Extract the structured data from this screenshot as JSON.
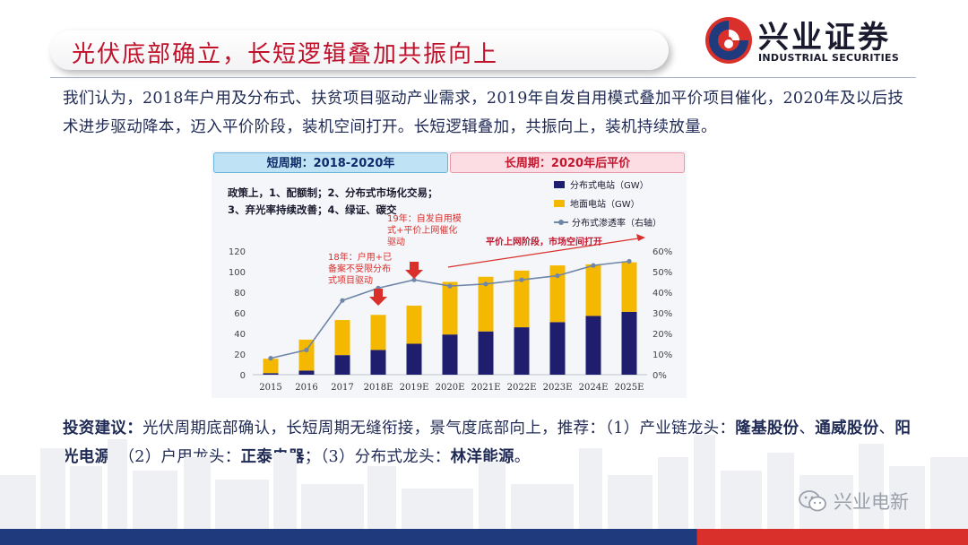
{
  "header": {
    "title": "光伏底部确立，长短逻辑叠加共振向上",
    "logo_cn": "兴业证券",
    "logo_en": "INDUSTRIAL SECURITIES"
  },
  "summary": "我们认为，2018年户用及分布式、扶贫项目驱动产业需求，2019年自发自用模式叠加平价项目催化，2020年及以后技术进步驱动降本，迈入平价阶段，装机空间打开。长短逻辑叠加，共振向上，装机持续放量。",
  "chart_data": {
    "type": "bar",
    "stacked": true,
    "categories": [
      "2015",
      "2016",
      "2017",
      "2018E",
      "2019E",
      "2020E",
      "2021E",
      "2022E",
      "2023E",
      "2024E",
      "2025E"
    ],
    "series": [
      {
        "name": "分布式电站（GW）",
        "kind": "bar",
        "values": [
          1.5,
          4,
          19,
          24,
          30,
          39,
          42,
          46,
          51,
          57,
          61
        ],
        "color": "#1f1d6e"
      },
      {
        "name": "地面电站（GW）",
        "kind": "bar",
        "values": [
          14,
          30,
          34,
          34,
          37,
          51,
          53,
          55,
          55,
          50,
          48
        ],
        "color": "#f5b800"
      },
      {
        "name": "分布式渗透率（右轴）",
        "kind": "line",
        "axis": "right",
        "values": [
          0.08,
          0.12,
          0.36,
          0.42,
          0.46,
          0.43,
          0.44,
          0.46,
          0.48,
          0.53,
          0.55
        ],
        "color": "#6f86a8"
      }
    ],
    "yticks_left": [
      "0",
      "20",
      "40",
      "60",
      "80",
      "100",
      "120"
    ],
    "ylim_left": [
      0,
      120
    ],
    "yticks_right": [
      "0%",
      "10%",
      "20%",
      "30%",
      "40%",
      "50%",
      "60%"
    ],
    "ylim_right": [
      0,
      0.6
    ],
    "period_short": "短周期：2018-2020年",
    "period_long": "长周期：2020年后平价",
    "policy_note": "政策上，1、配额制；2、分布式市场化交易；3、弃光率持续改善；4、绿证、碳交",
    "annotation_2019": "19年：自发自用模式+平价上网催化驱动",
    "annotation_2018": "18年：户用+已备案不受限分布式项目驱动",
    "annotation_grid": "平价上网阶段，市场空间打开",
    "colors": {
      "arrow": "#d9302c"
    }
  },
  "advice": {
    "prefix": "投资建议：",
    "text1": "光伏周期底部确认，长短周期无缝衔接，景气度底部向上，推荐：（1）产业链龙头：",
    "stock1": "隆基股份",
    "sep1": "、",
    "stock2": "通威股份",
    "sep2": "、",
    "stock3": "阳光电源",
    "text2": "；（2）户用龙头：",
    "stock4": "正泰电器",
    "text3": "；（3）分布式龙头：",
    "stock5": "林洋能源",
    "end": "。"
  },
  "watermark": "兴业电新"
}
